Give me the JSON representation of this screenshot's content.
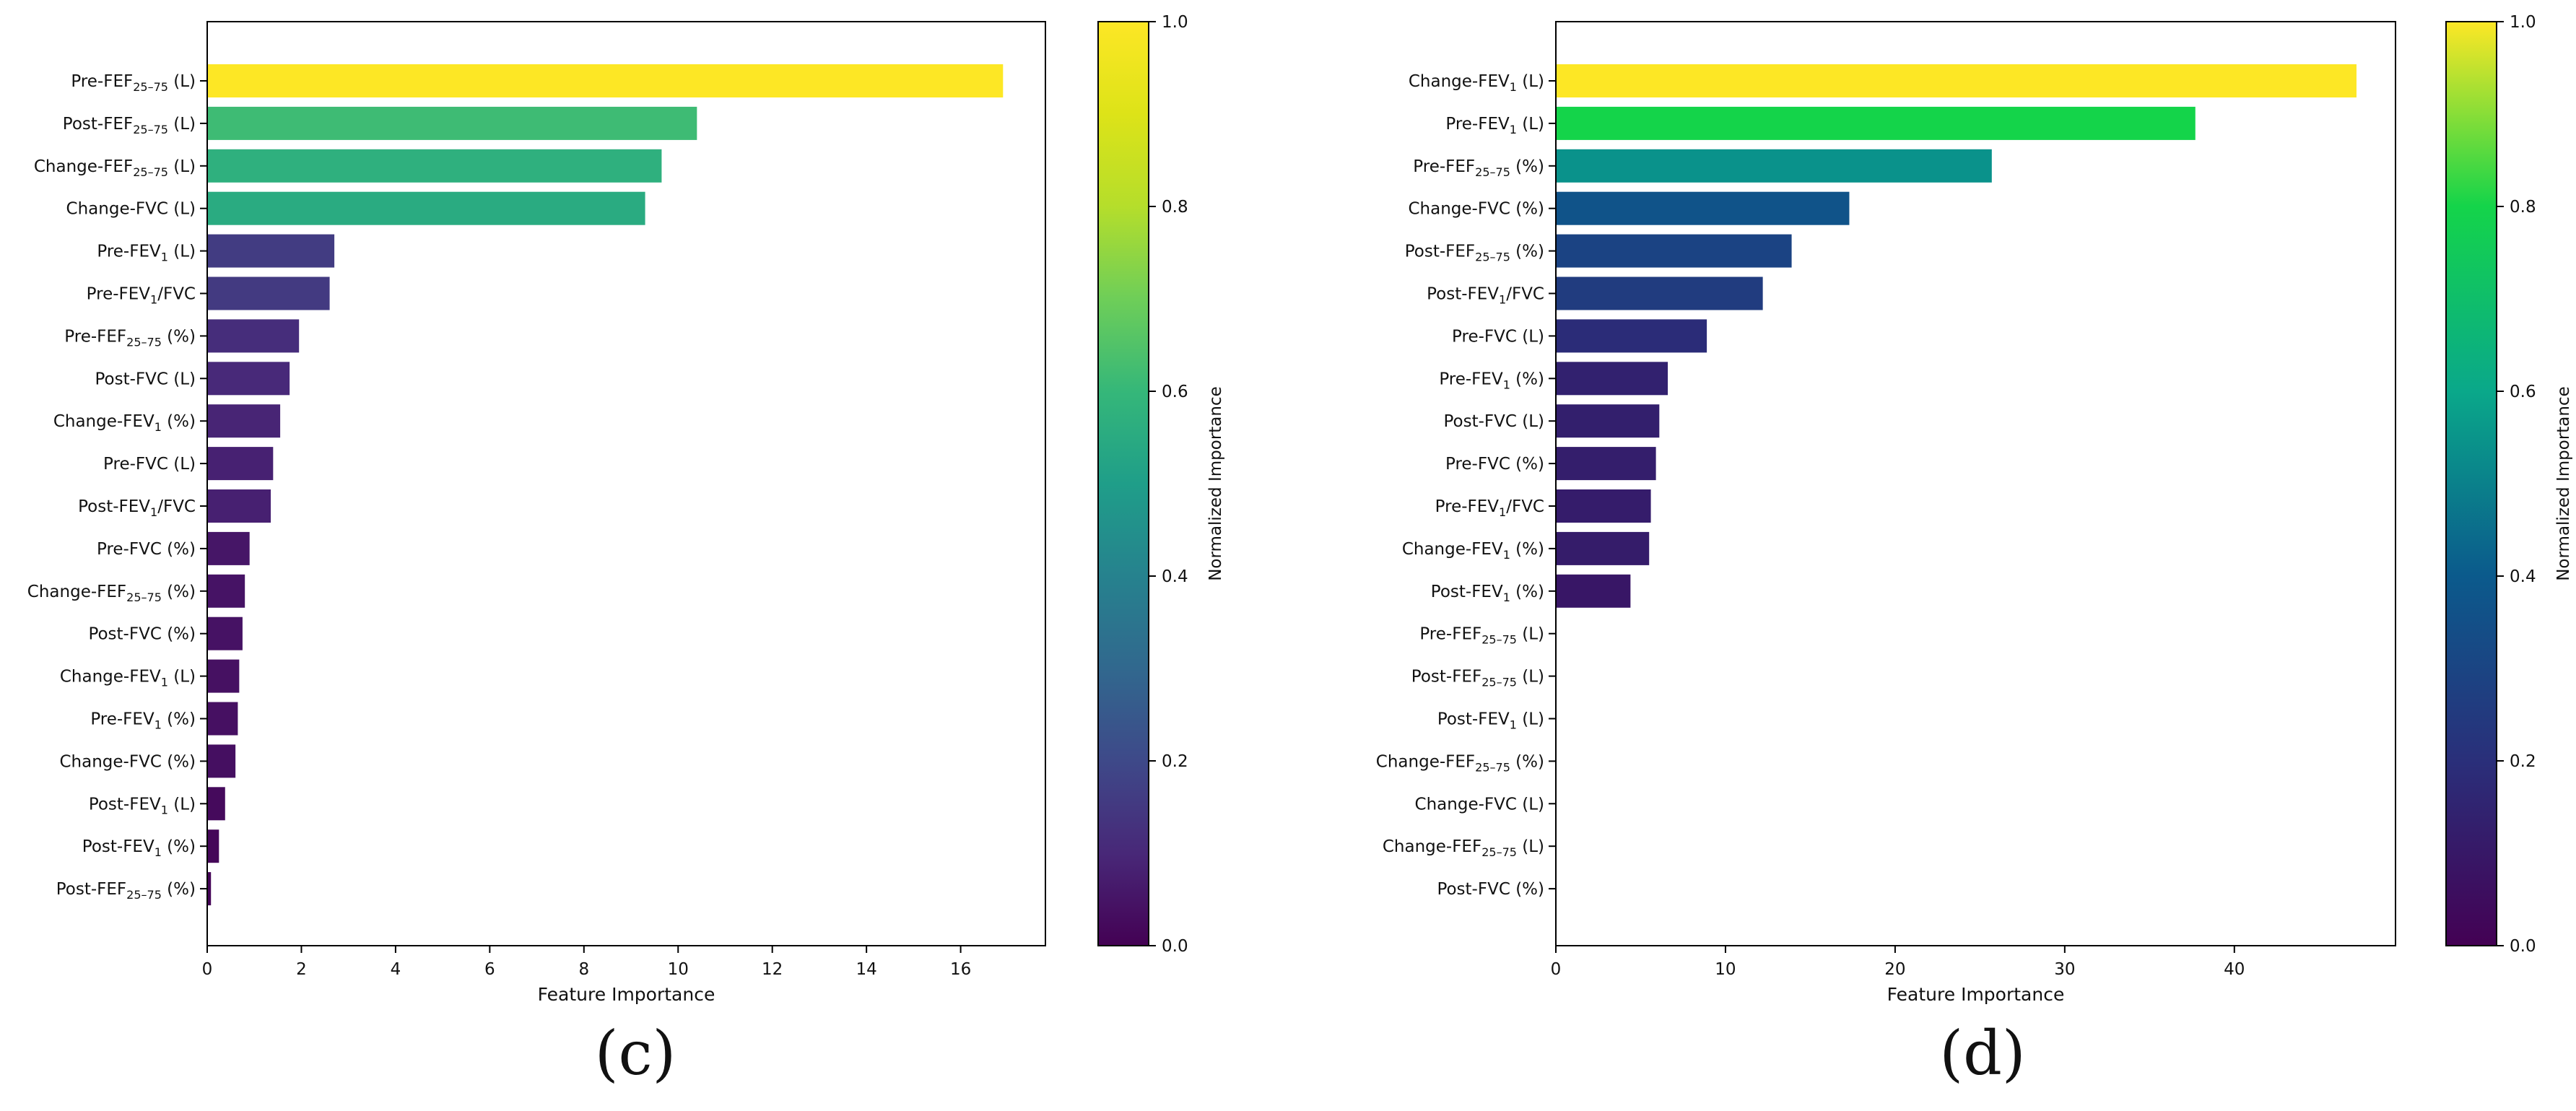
{
  "chart_data": [
    {
      "type": "bar",
      "orientation": "horizontal",
      "panel_label": "(c)",
      "xlabel": "Feature Importance",
      "ylabel": "",
      "xlim": [
        0,
        17.8
      ],
      "xticks": [
        0,
        2,
        4,
        6,
        8,
        10,
        12,
        14,
        16
      ],
      "colorbar": {
        "label": "Normalized Importance",
        "range": [
          0.0,
          1.0
        ],
        "ticks": [
          "0.0",
          "0.2",
          "0.4",
          "0.6",
          "0.8",
          "1.0"
        ],
        "colormap": "viridis"
      },
      "categories": [
        {
          "pre": "Pre-FEF",
          "sub": "25–75",
          "post": " (L)"
        },
        {
          "pre": "Post-FEF",
          "sub": "25–75",
          "post": " (L)"
        },
        {
          "pre": "Change-FEF",
          "sub": "25–75",
          "post": " (L)"
        },
        {
          "pre": "Change-FVC (L)",
          "sub": "",
          "post": ""
        },
        {
          "pre": "Pre-FEV",
          "sub": "1",
          "post": " (L)"
        },
        {
          "pre": "Pre-FEV",
          "sub": "1",
          "post": "/FVC"
        },
        {
          "pre": "Pre-FEF",
          "sub": "25–75",
          "post": " (%)"
        },
        {
          "pre": "Post-FVC (L)",
          "sub": "",
          "post": ""
        },
        {
          "pre": "Change-FEV",
          "sub": "1",
          "post": " (%)"
        },
        {
          "pre": "Pre-FVC (L)",
          "sub": "",
          "post": ""
        },
        {
          "pre": "Post-FEV",
          "sub": "1",
          "post": "/FVC"
        },
        {
          "pre": "Pre-FVC (%)",
          "sub": "",
          "post": ""
        },
        {
          "pre": "Change-FEF",
          "sub": "25–75",
          "post": " (%)"
        },
        {
          "pre": "Post-FVC (%)",
          "sub": "",
          "post": ""
        },
        {
          "pre": "Change-FEV",
          "sub": "1",
          "post": " (L)"
        },
        {
          "pre": "Pre-FEV",
          "sub": "1",
          "post": " (%)"
        },
        {
          "pre": "Change-FVC (%)",
          "sub": "",
          "post": ""
        },
        {
          "pre": "Post-FEV",
          "sub": "1",
          "post": " (L)"
        },
        {
          "pre": "Post-FEV",
          "sub": "1",
          "post": " (%)"
        },
        {
          "pre": "Post-FEF",
          "sub": "25–75",
          "post": " (%)"
        }
      ],
      "values": [
        16.9,
        10.4,
        9.65,
        9.3,
        2.7,
        2.6,
        1.95,
        1.75,
        1.55,
        1.4,
        1.35,
        0.9,
        0.8,
        0.75,
        0.68,
        0.65,
        0.6,
        0.38,
        0.25,
        0.08
      ]
    },
    {
      "type": "bar",
      "orientation": "horizontal",
      "panel_label": "(d)",
      "xlabel": "Feature Importance",
      "ylabel": "",
      "xlim": [
        0,
        49.5
      ],
      "xticks": [
        0,
        10,
        20,
        30,
        40
      ],
      "colorbar": {
        "label": "Normalized Importance",
        "range": [
          0.0,
          1.0
        ],
        "ticks": [
          "0.0",
          "0.2",
          "0.4",
          "0.6",
          "0.8",
          "1.0"
        ],
        "colormap": "viridis"
      },
      "categories": [
        {
          "pre": "Change-FEV",
          "sub": "1",
          "post": " (L)"
        },
        {
          "pre": "Pre-FEV",
          "sub": "1",
          "post": " (L)"
        },
        {
          "pre": "Pre-FEF",
          "sub": "25–75",
          "post": " (%)"
        },
        {
          "pre": "Change-FVC (%)",
          "sub": "",
          "post": ""
        },
        {
          "pre": "Post-FEF",
          "sub": "25–75",
          "post": " (%)"
        },
        {
          "pre": "Post-FEV",
          "sub": "1",
          "post": "/FVC"
        },
        {
          "pre": "Pre-FVC (L)",
          "sub": "",
          "post": ""
        },
        {
          "pre": "Pre-FEV",
          "sub": "1",
          "post": " (%)"
        },
        {
          "pre": "Post-FVC (L)",
          "sub": "",
          "post": ""
        },
        {
          "pre": "Pre-FVC (%)",
          "sub": "",
          "post": ""
        },
        {
          "pre": "Pre-FEV",
          "sub": "1",
          "post": "/FVC"
        },
        {
          "pre": "Change-FEV",
          "sub": "1",
          "post": " (%)"
        },
        {
          "pre": "Post-FEV",
          "sub": "1",
          "post": " (%)"
        },
        {
          "pre": "Pre-FEF",
          "sub": "25–75",
          "post": " (L)"
        },
        {
          "pre": "Post-FEF",
          "sub": "25–75",
          "post": " (L)"
        },
        {
          "pre": "Post-FEV",
          "sub": "1",
          "post": " (L)"
        },
        {
          "pre": "Change-FEF",
          "sub": "25–75",
          "post": " (%)"
        },
        {
          "pre": "Change-FVC (L)",
          "sub": "",
          "post": ""
        },
        {
          "pre": "Change-FEF",
          "sub": "25–75",
          "post": " (L)"
        },
        {
          "pre": "Post-FVC (%)",
          "sub": "",
          "post": ""
        }
      ],
      "values": [
        47.2,
        37.7,
        25.7,
        17.3,
        13.9,
        12.2,
        8.9,
        6.6,
        6.1,
        5.9,
        5.6,
        5.5,
        4.4,
        0,
        0,
        0,
        0,
        0,
        0,
        0
      ]
    }
  ]
}
